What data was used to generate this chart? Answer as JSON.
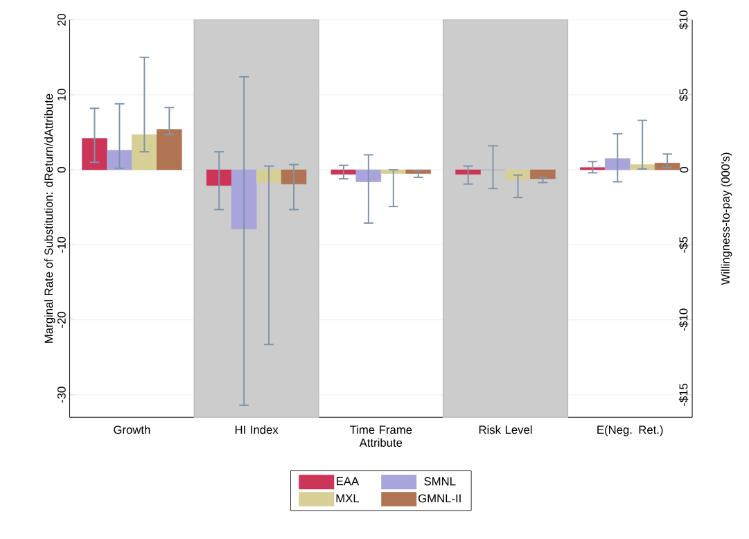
{
  "chart_data": {
    "type": "bar",
    "categories": [
      "Growth",
      "HI Index",
      "Time Frame Attribute",
      "Risk Level",
      "E(Neg. Ret.)"
    ],
    "series": [
      {
        "name": "EAA",
        "color": "#cc3458",
        "values": [
          4.2,
          -2.1,
          -0.6,
          -0.6,
          0.3
        ],
        "errors": [
          [
            1.0,
            8.2
          ],
          [
            -5.3,
            2.4
          ],
          [
            -1.2,
            0.6
          ],
          [
            -1.9,
            0.5
          ],
          [
            -0.4,
            1.1
          ]
        ]
      },
      {
        "name": "SMNL",
        "color": "#a8a4dc",
        "values": [
          2.6,
          -7.9,
          -1.6,
          0.0,
          1.5
        ],
        "errors": [
          [
            0.2,
            8.8
          ],
          [
            -31.4,
            12.4
          ],
          [
            -7.1,
            2.0
          ],
          [
            -2.5,
            3.2
          ],
          [
            -1.6,
            4.8
          ]
        ]
      },
      {
        "name": "MXL",
        "color": "#d6cf96",
        "values": [
          4.7,
          -1.7,
          -0.5,
          -1.3,
          0.7
        ],
        "errors": [
          [
            2.4,
            15.0
          ],
          [
            -23.3,
            0.5
          ],
          [
            -4.9,
            0.0
          ],
          [
            -3.7,
            -0.7
          ],
          [
            0.1,
            6.6
          ]
        ]
      },
      {
        "name": "GMNL-II",
        "color": "#b07354",
        "values": [
          5.4,
          -1.9,
          -0.5,
          -1.2,
          0.9
        ],
        "errors": [
          [
            4.7,
            8.3
          ],
          [
            -5.3,
            0.7
          ],
          [
            -1.0,
            -0.1
          ],
          [
            -1.7,
            -1.0
          ],
          [
            0.3,
            2.1
          ]
        ]
      }
    ],
    "ylabel": "Marginal Rate of Substitution: dReturn/dAttribute",
    "y2label": "Willingness-to-pay (000's)",
    "ylim": [
      -33,
      20
    ],
    "yticks": [
      -30,
      -20,
      -10,
      0,
      10,
      20
    ],
    "y2lim": [
      -16.5,
      10
    ],
    "y2ticks": [
      {
        "value": -15,
        "label": "-$15"
      },
      {
        "value": -10,
        "label": "-$10"
      },
      {
        "value": -5,
        "label": "-$5"
      },
      0,
      {
        "value": 5,
        "label": "$5"
      },
      {
        "value": 10,
        "label": "$10"
      }
    ],
    "grid": "y",
    "legend": "bottom"
  }
}
